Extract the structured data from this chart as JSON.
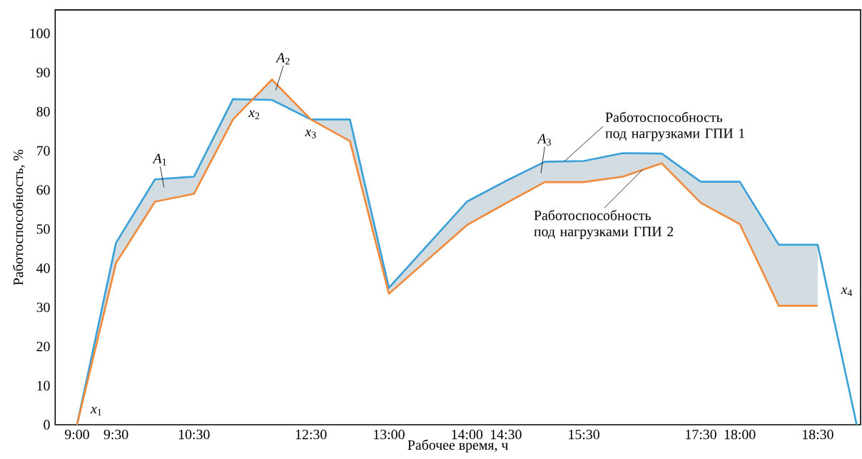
{
  "chart_data": {
    "type": "line",
    "xlabel": "Рабочее время, ч",
    "ylabel": "Работоспособность, %",
    "categories": [
      "9:00",
      "9:30",
      null,
      "10:30",
      null,
      null,
      "12:30",
      null,
      "13:00",
      null,
      "14:00",
      "14:30",
      null,
      "15:30",
      null,
      null,
      "17:30",
      "18:00",
      null,
      "18:30",
      null
    ],
    "ylim": [
      0,
      106
    ],
    "yticks": [
      0,
      10,
      20,
      30,
      40,
      50,
      60,
      70,
      80,
      90,
      100
    ],
    "series": [
      {
        "name": "Работоспособность под нагрузками ГПИ 1",
        "color": "#3aa0d8",
        "values": [
          0,
          46.5,
          62.7,
          63.4,
          83.2,
          83,
          78,
          78,
          35,
          null,
          57,
          62.3,
          67.2,
          67.4,
          69.4,
          69.3,
          62.1,
          62.1,
          46,
          46,
          0
        ],
        "upper": [
          0,
          46.5,
          62.7,
          63.4,
          83.2,
          83,
          78,
          78,
          35,
          null,
          57,
          62.3,
          67.2,
          67.4,
          69.4,
          69.3,
          62.1,
          62.1,
          46,
          46,
          null
        ],
        "lower": [
          0,
          41.3,
          57,
          59,
          78,
          88.2,
          78,
          72.5,
          33.5,
          null,
          51,
          56.6,
          62,
          62,
          63.4,
          66.8,
          56.7,
          51.3,
          30.4,
          30.4,
          null
        ]
      },
      {
        "name": "Работоспособность под нагрузками ГПИ 2",
        "color": "#f08a3c",
        "values": [
          0,
          41.3,
          57,
          59,
          78,
          88.2,
          78,
          72.5,
          33.5,
          null,
          51,
          56.6,
          62,
          62,
          63.4,
          66.8,
          56.7,
          51.3,
          30.4,
          30.4,
          null
        ]
      }
    ],
    "annotations": [
      "*A*$_{1}$",
      "*A*$_{2}$",
      "*A*$_{3}$",
      "*x*$_{1}$",
      "*x*$_{2}$",
      "*x*$_{3}$",
      "*x*$_{4}$"
    ],
    "grid": false,
    "legend": false,
    "marker": "none",
    "line_style": "solid"
  }
}
